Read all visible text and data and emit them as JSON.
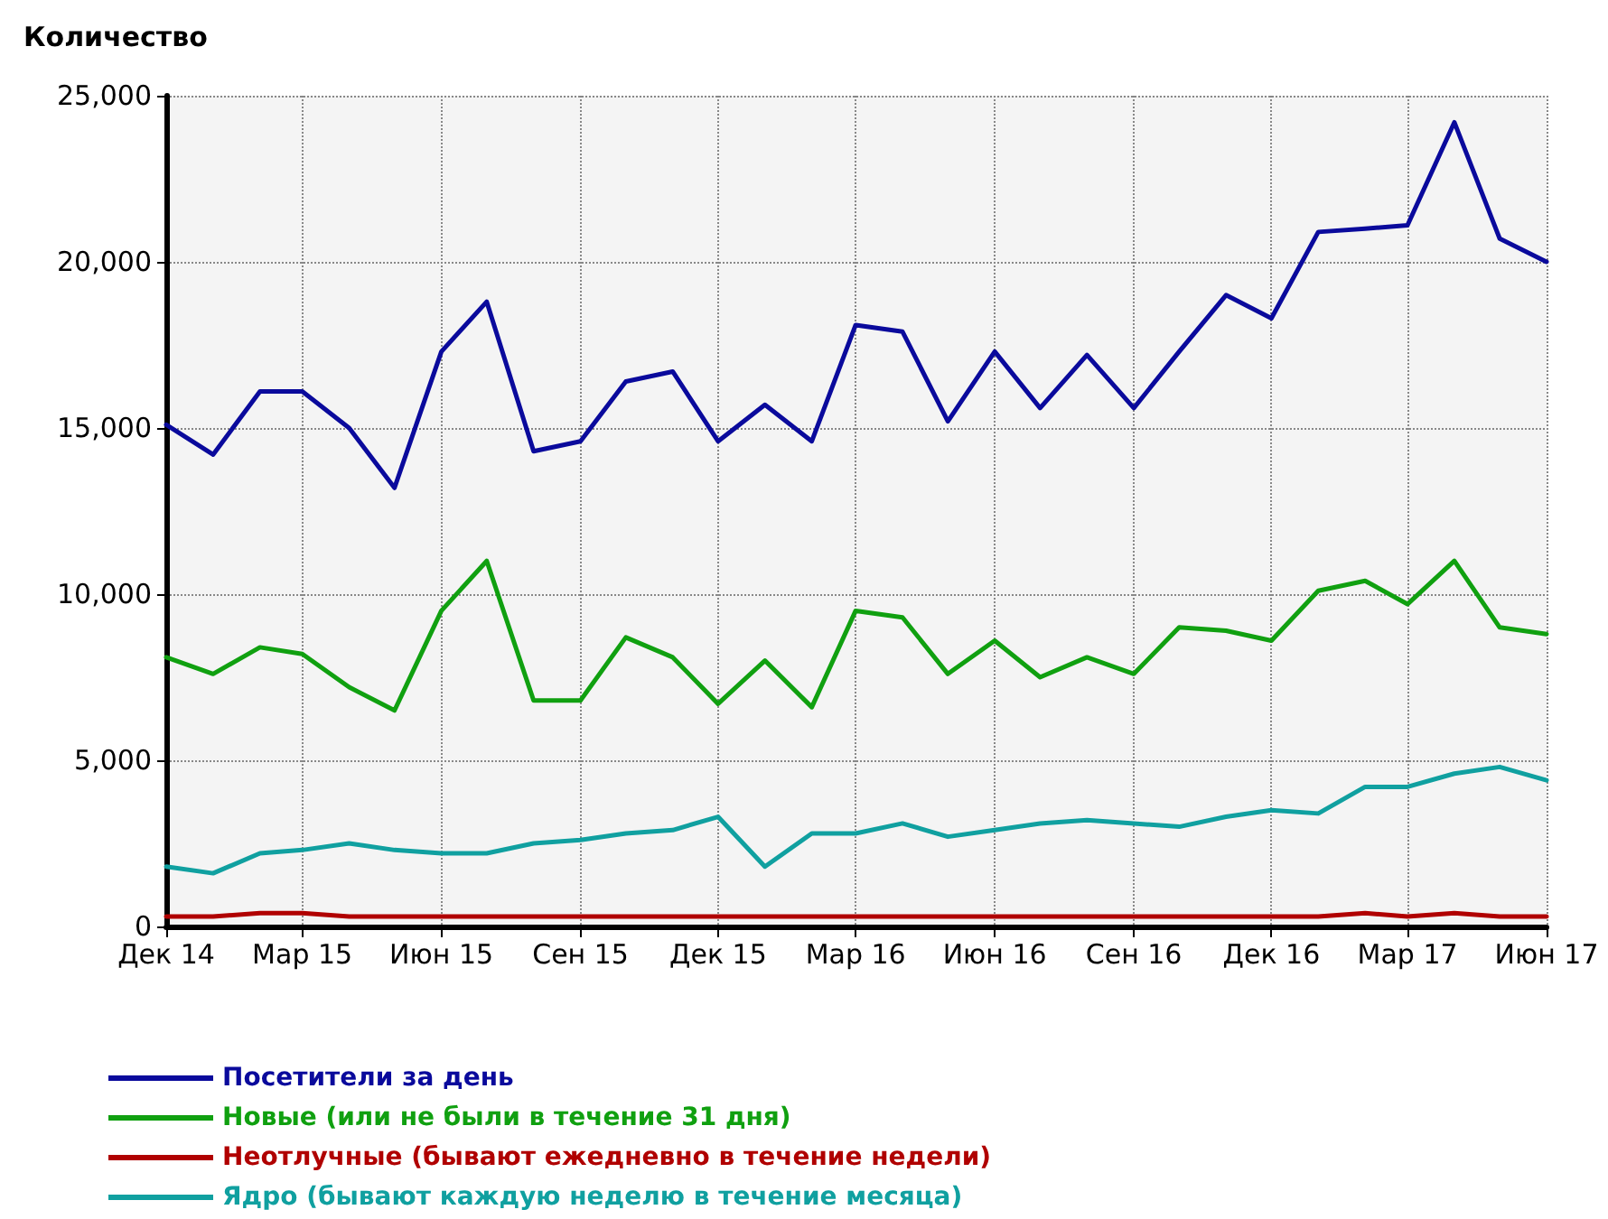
{
  "chart_data": {
    "type": "line",
    "ylabel": "Количество",
    "x": [
      "2014-12",
      "2015-01",
      "2015-02",
      "2015-03",
      "2015-04",
      "2015-05",
      "2015-06",
      "2015-07",
      "2015-08",
      "2015-09",
      "2015-10",
      "2015-11",
      "2015-12",
      "2016-01",
      "2016-02",
      "2016-03",
      "2016-04",
      "2016-05",
      "2016-06",
      "2016-07",
      "2016-08",
      "2016-09",
      "2016-10",
      "2016-11",
      "2016-12",
      "2017-01",
      "2017-02",
      "2017-03",
      "2017-04",
      "2017-05",
      "2017-06"
    ],
    "series": [
      {
        "name": "Посетители за день",
        "color": "#0a0a9c",
        "values": [
          15100,
          14200,
          16100,
          16100,
          15000,
          13200,
          17300,
          18800,
          14300,
          14600,
          16400,
          16700,
          14600,
          15700,
          14600,
          18100,
          17900,
          15200,
          17300,
          15600,
          17200,
          15600,
          17300,
          19000,
          18300,
          20900,
          21000,
          21100,
          24200,
          20700,
          20000
        ]
      },
      {
        "name": "Новые (или не были в течение 31 дня)",
        "color": "#10a010",
        "values": [
          8100,
          7600,
          8400,
          8200,
          7200,
          6500,
          9500,
          11000,
          6800,
          6800,
          8700,
          8100,
          6700,
          8000,
          6600,
          9500,
          9300,
          7600,
          8600,
          7500,
          8100,
          7600,
          9000,
          8900,
          8600,
          10100,
          10400,
          9700,
          11000,
          9000,
          8800
        ]
      },
      {
        "name": "Неотлучные (бывают ежедневно в течение недели)",
        "color": "#b00000",
        "values": [
          300,
          300,
          400,
          400,
          300,
          300,
          300,
          300,
          300,
          300,
          300,
          300,
          300,
          300,
          300,
          300,
          300,
          300,
          300,
          300,
          300,
          300,
          300,
          300,
          300,
          300,
          400,
          300,
          400,
          300,
          300
        ]
      },
      {
        "name": "Ядро (бывают каждую неделю в течение месяца)",
        "color": "#10a0a0",
        "values": [
          1800,
          1600,
          2200,
          2300,
          2500,
          2300,
          2200,
          2200,
          2500,
          2600,
          2800,
          2900,
          3300,
          1800,
          2800,
          2800,
          3100,
          2700,
          2900,
          3100,
          3200,
          3100,
          3000,
          3300,
          3500,
          3400,
          4200,
          4200,
          4600,
          4800,
          4400
        ]
      }
    ],
    "xlim": [
      "2014-12",
      "2017-06"
    ],
    "xticks": [
      {
        "value": "2014-12",
        "label": "Дек 14"
      },
      {
        "value": "2015-03",
        "label": "Мар 15"
      },
      {
        "value": "2015-06",
        "label": "Июн 15"
      },
      {
        "value": "2015-09",
        "label": "Сен 15"
      },
      {
        "value": "2015-12",
        "label": "Дек 15"
      },
      {
        "value": "2016-03",
        "label": "Мар 16"
      },
      {
        "value": "2016-06",
        "label": "Июн 16"
      },
      {
        "value": "2016-09",
        "label": "Сен 16"
      },
      {
        "value": "2016-12",
        "label": "Дек 16"
      },
      {
        "value": "2017-03",
        "label": "Мар 17"
      },
      {
        "value": "2017-06",
        "label": "Июн 17"
      }
    ],
    "ylim": [
      0,
      25000
    ],
    "yticks": [
      {
        "value": 0,
        "label": "0"
      },
      {
        "value": 5000,
        "label": "5,000"
      },
      {
        "value": 10000,
        "label": "10,000"
      },
      {
        "value": 15000,
        "label": "15,000"
      },
      {
        "value": 20000,
        "label": "20,000"
      },
      {
        "value": 25000,
        "label": "25,000"
      }
    ],
    "grid": true,
    "legend": "bottom",
    "marker": "none",
    "line_style": "solid"
  }
}
